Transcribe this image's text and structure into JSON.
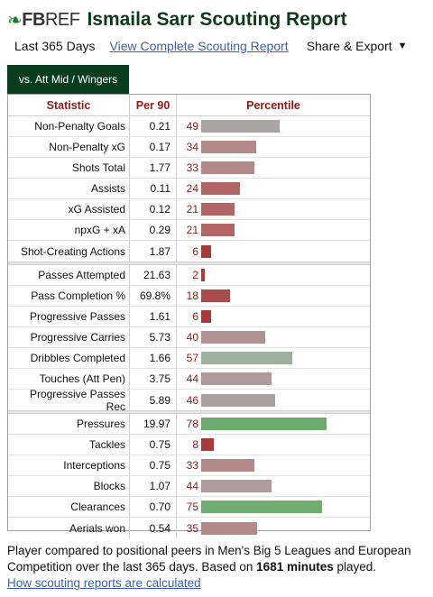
{
  "header": {
    "logo_mark": "❧",
    "logo_fb": "FB",
    "logo_ref": "REF",
    "title": "Ismaila Sarr Scouting Report"
  },
  "subnav": {
    "period": "Last 365 Days",
    "full_report_link": "View Complete Scouting Report",
    "share_label": "Share & Export",
    "share_caret": "▼"
  },
  "tab": {
    "label": "vs. Att Mid / Wingers"
  },
  "table": {
    "headers": {
      "statistic": "Statistic",
      "per90": "Per 90",
      "percentile": "Percentile"
    },
    "groups": [
      [
        {
          "stat": "Non-Penalty Goals",
          "per90": "0.21",
          "pct": "49",
          "pct_value": 49,
          "color": "#aba4a4"
        },
        {
          "stat": "Non-Penalty xG",
          "per90": "0.17",
          "pct": "34",
          "pct_value": 34,
          "color": "#b28888"
        },
        {
          "stat": "Shots Total",
          "per90": "1.77",
          "pct": "33",
          "pct_value": 33,
          "color": "#b28888"
        },
        {
          "stat": "Assists",
          "per90": "0.11",
          "pct": "24",
          "pct_value": 24,
          "color": "#b36565"
        },
        {
          "stat": "xG Assisted",
          "per90": "0.12",
          "pct": "21",
          "pct_value": 21,
          "color": "#b36565"
        },
        {
          "stat": "npxG + xA",
          "per90": "0.29",
          "pct": "21",
          "pct_value": 21,
          "color": "#b36565"
        },
        {
          "stat": "Shot-Creating Actions",
          "per90": "1.87",
          "pct": "6",
          "pct_value": 6,
          "color": "#a83a3a"
        }
      ],
      [
        {
          "stat": "Passes Attempted",
          "per90": "21.63",
          "pct": "2",
          "pct_value": 2,
          "color": "#a83a3a"
        },
        {
          "stat": "Pass Completion %",
          "per90": "69.8%",
          "pct": "18",
          "pct_value": 18,
          "color": "#a84b4b"
        },
        {
          "stat": "Progressive Passes",
          "per90": "1.61",
          "pct": "6",
          "pct_value": 6,
          "color": "#a83a3a"
        },
        {
          "stat": "Progressive Carries",
          "per90": "5.73",
          "pct": "40",
          "pct_value": 40,
          "color": "#b09292"
        },
        {
          "stat": "Dribbles Completed",
          "per90": "1.66",
          "pct": "57",
          "pct_value": 57,
          "color": "#9eb09e"
        },
        {
          "stat": "Touches (Att Pen)",
          "per90": "3.75",
          "pct": "44",
          "pct_value": 44,
          "color": "#ae9c9c"
        },
        {
          "stat": "Progressive Passes Rec",
          "per90": "5.89",
          "pct": "46",
          "pct_value": 46,
          "color": "#aca1a1"
        }
      ],
      [
        {
          "stat": "Pressures",
          "per90": "19.97",
          "pct": "78",
          "pct_value": 78,
          "color": "#6aaa6a"
        },
        {
          "stat": "Tackles",
          "per90": "0.75",
          "pct": "8",
          "pct_value": 8,
          "color": "#a83a3a"
        },
        {
          "stat": "Interceptions",
          "per90": "0.75",
          "pct": "33",
          "pct_value": 33,
          "color": "#b28888"
        },
        {
          "stat": "Blocks",
          "per90": "1.07",
          "pct": "44",
          "pct_value": 44,
          "color": "#ae9c9c"
        },
        {
          "stat": "Clearances",
          "per90": "0.70",
          "pct": "75",
          "pct_value": 75,
          "color": "#6fac6f"
        },
        {
          "stat": "Aerials won",
          "per90": "0.54",
          "pct": "35",
          "pct_value": 35,
          "color": "#b28888"
        }
      ]
    ]
  },
  "footer": {
    "text_before": "Player compared to positional peers in Men's Big 5 Leagues and European Competition over the last 365 days. Based on ",
    "minutes_bold": "1681 minutes",
    "text_after": " played.",
    "link": "How scouting reports are calculated"
  }
}
